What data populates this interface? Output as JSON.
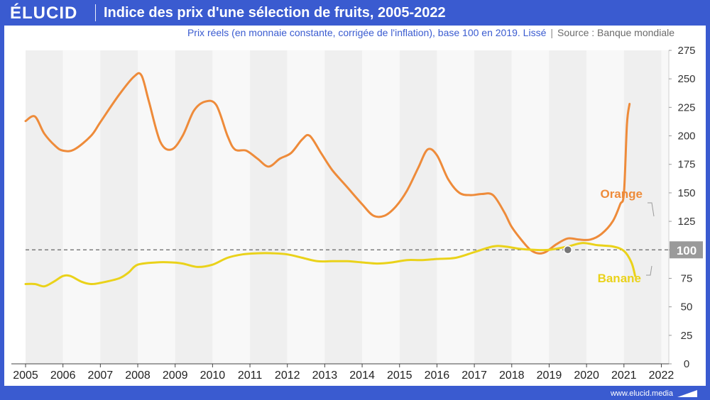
{
  "header": {
    "logo": "ÉLUCID",
    "title": "Indice des prix d'une sélection de fruits, 2005-2022"
  },
  "subtitle": {
    "text": "Prix réels (en monnaie constante, corrigée de l'inflation), base 100 en 2019. Lissé",
    "separator": "|",
    "source": "Source : Banque mondiale"
  },
  "footer": {
    "url": "www.elucid.media"
  },
  "colors": {
    "brand": "#3a5bd0",
    "orange": "#ee8b3a",
    "banane": "#ead21a",
    "band_dark": "#efefef",
    "band_light": "#f8f8f8",
    "reference": "#666666",
    "marker": "#777777"
  },
  "chart_data": {
    "type": "line",
    "title": "Indice des prix d'une sélection de fruits, 2005-2022",
    "xlabel": "",
    "ylabel": "",
    "xlim": [
      2005,
      2022.2
    ],
    "ylim": [
      0,
      275
    ],
    "x_ticks": [
      "2005",
      "2006",
      "2007",
      "2008",
      "2009",
      "2010",
      "2011",
      "2012",
      "2013",
      "2014",
      "2015",
      "2016",
      "2017",
      "2018",
      "2019",
      "2020",
      "2021",
      "2022"
    ],
    "y_ticks": [
      0,
      25,
      50,
      75,
      100,
      125,
      150,
      175,
      200,
      225,
      250,
      275
    ],
    "reference_line": {
      "y": 100,
      "label": "100"
    },
    "marker": {
      "x": 2019.5,
      "y": 100
    },
    "series": [
      {
        "name": "Orange",
        "color": "#ee8b3a",
        "points": [
          [
            2005.0,
            213
          ],
          [
            2005.25,
            217
          ],
          [
            2005.5,
            202
          ],
          [
            2005.8,
            191
          ],
          [
            2006.0,
            187
          ],
          [
            2006.3,
            188
          ],
          [
            2006.75,
            200
          ],
          [
            2007.0,
            212
          ],
          [
            2007.5,
            236
          ],
          [
            2007.9,
            252
          ],
          [
            2008.1,
            253
          ],
          [
            2008.3,
            230
          ],
          [
            2008.6,
            195
          ],
          [
            2008.9,
            188
          ],
          [
            2009.2,
            200
          ],
          [
            2009.5,
            222
          ],
          [
            2009.8,
            230
          ],
          [
            2010.1,
            227
          ],
          [
            2010.4,
            200
          ],
          [
            2010.6,
            188
          ],
          [
            2010.9,
            187
          ],
          [
            2011.2,
            180
          ],
          [
            2011.5,
            173
          ],
          [
            2011.8,
            180
          ],
          [
            2012.1,
            185
          ],
          [
            2012.4,
            197
          ],
          [
            2012.6,
            200
          ],
          [
            2012.9,
            185
          ],
          [
            2013.2,
            170
          ],
          [
            2013.6,
            155
          ],
          [
            2014.0,
            140
          ],
          [
            2014.3,
            130
          ],
          [
            2014.6,
            130
          ],
          [
            2014.9,
            138
          ],
          [
            2015.2,
            152
          ],
          [
            2015.5,
            172
          ],
          [
            2015.75,
            188
          ],
          [
            2016.0,
            183
          ],
          [
            2016.3,
            162
          ],
          [
            2016.6,
            150
          ],
          [
            2016.9,
            148
          ],
          [
            2017.2,
            149
          ],
          [
            2017.5,
            148
          ],
          [
            2017.8,
            133
          ],
          [
            2018.0,
            120
          ],
          [
            2018.3,
            107
          ],
          [
            2018.5,
            100
          ],
          [
            2018.7,
            97
          ],
          [
            2018.9,
            98
          ],
          [
            2019.2,
            105
          ],
          [
            2019.5,
            110
          ],
          [
            2019.8,
            109
          ],
          [
            2020.1,
            109
          ],
          [
            2020.4,
            114
          ],
          [
            2020.7,
            125
          ],
          [
            2020.9,
            140
          ],
          [
            2021.0,
            150
          ],
          [
            2021.08,
            210
          ],
          [
            2021.15,
            228
          ]
        ]
      },
      {
        "name": "Banane",
        "color": "#ead21a",
        "points": [
          [
            2005.0,
            70
          ],
          [
            2005.25,
            70
          ],
          [
            2005.5,
            68
          ],
          [
            2005.75,
            72
          ],
          [
            2006.0,
            77
          ],
          [
            2006.2,
            77
          ],
          [
            2006.5,
            72
          ],
          [
            2006.75,
            70
          ],
          [
            2007.0,
            71
          ],
          [
            2007.5,
            75
          ],
          [
            2007.75,
            80
          ],
          [
            2008.0,
            87
          ],
          [
            2008.5,
            89
          ],
          [
            2008.9,
            89
          ],
          [
            2009.2,
            88
          ],
          [
            2009.6,
            85
          ],
          [
            2010.0,
            87
          ],
          [
            2010.4,
            93
          ],
          [
            2010.8,
            96
          ],
          [
            2011.2,
            97
          ],
          [
            2011.6,
            97
          ],
          [
            2012.0,
            96
          ],
          [
            2012.4,
            93
          ],
          [
            2012.8,
            90
          ],
          [
            2013.2,
            90
          ],
          [
            2013.6,
            90
          ],
          [
            2014.0,
            89
          ],
          [
            2014.4,
            88
          ],
          [
            2014.8,
            89
          ],
          [
            2015.2,
            91
          ],
          [
            2015.6,
            91
          ],
          [
            2016.0,
            92
          ],
          [
            2016.5,
            93
          ],
          [
            2017.0,
            98
          ],
          [
            2017.5,
            103
          ],
          [
            2017.8,
            103
          ],
          [
            2018.2,
            101
          ],
          [
            2018.6,
            100
          ],
          [
            2019.0,
            100
          ],
          [
            2019.5,
            103
          ],
          [
            2019.9,
            106
          ],
          [
            2020.3,
            104
          ],
          [
            2020.7,
            103
          ],
          [
            2021.0,
            99
          ],
          [
            2021.2,
            89
          ],
          [
            2021.3,
            77
          ]
        ]
      }
    ],
    "annotations": [
      {
        "series": "Orange",
        "text": "Orange"
      },
      {
        "series": "Banane",
        "text": "Banane"
      }
    ]
  }
}
